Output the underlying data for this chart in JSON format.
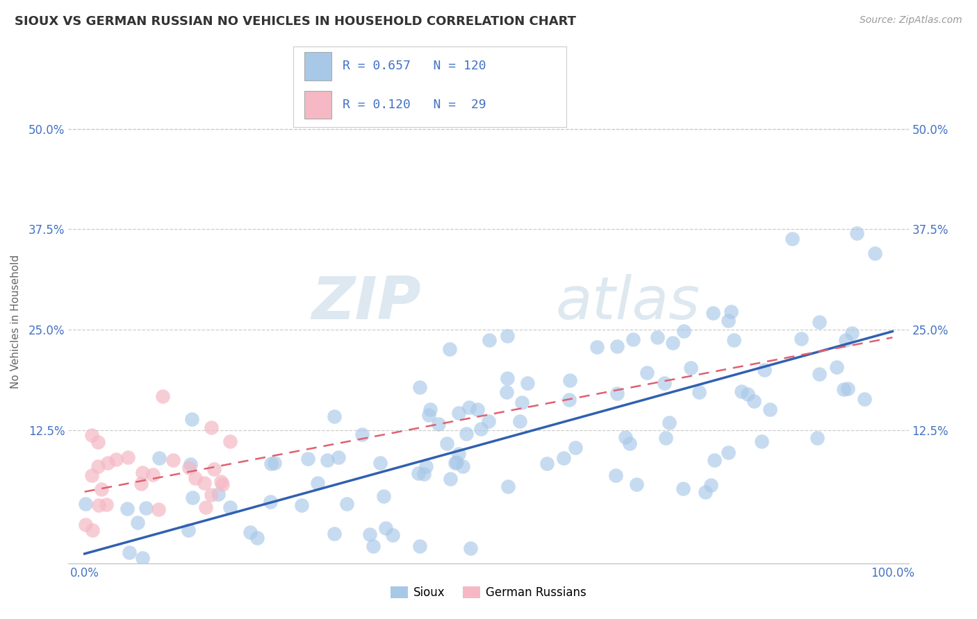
{
  "title": "SIOUX VS GERMAN RUSSIAN NO VEHICLES IN HOUSEHOLD CORRELATION CHART",
  "source": "Source: ZipAtlas.com",
  "ylabel": "No Vehicles in Household",
  "watermark_zip": "ZIP",
  "watermark_atlas": "atlas",
  "xlim": [
    -0.02,
    1.02
  ],
  "ylim": [
    -0.04,
    0.56
  ],
  "xtick_positions": [
    0.0,
    1.0
  ],
  "xtick_labels": [
    "0.0%",
    "100.0%"
  ],
  "ytick_positions": [
    0.125,
    0.25,
    0.375,
    0.5
  ],
  "ytick_labels": [
    "12.5%",
    "25.0%",
    "37.5%",
    "50.0%"
  ],
  "sioux_color": "#a8c8e8",
  "german_color": "#f5b8c4",
  "sioux_line_color": "#3060b0",
  "german_line_color": "#e06070",
  "text_color": "#4472c4",
  "background_color": "#ffffff",
  "grid_color": "#cccccc",
  "legend_r1": "R = 0.657",
  "legend_n1": "N = 120",
  "legend_r2": "R = 0.120",
  "legend_n2": "N =  29",
  "bottom_label1": "Sioux",
  "bottom_label2": "German Russians"
}
